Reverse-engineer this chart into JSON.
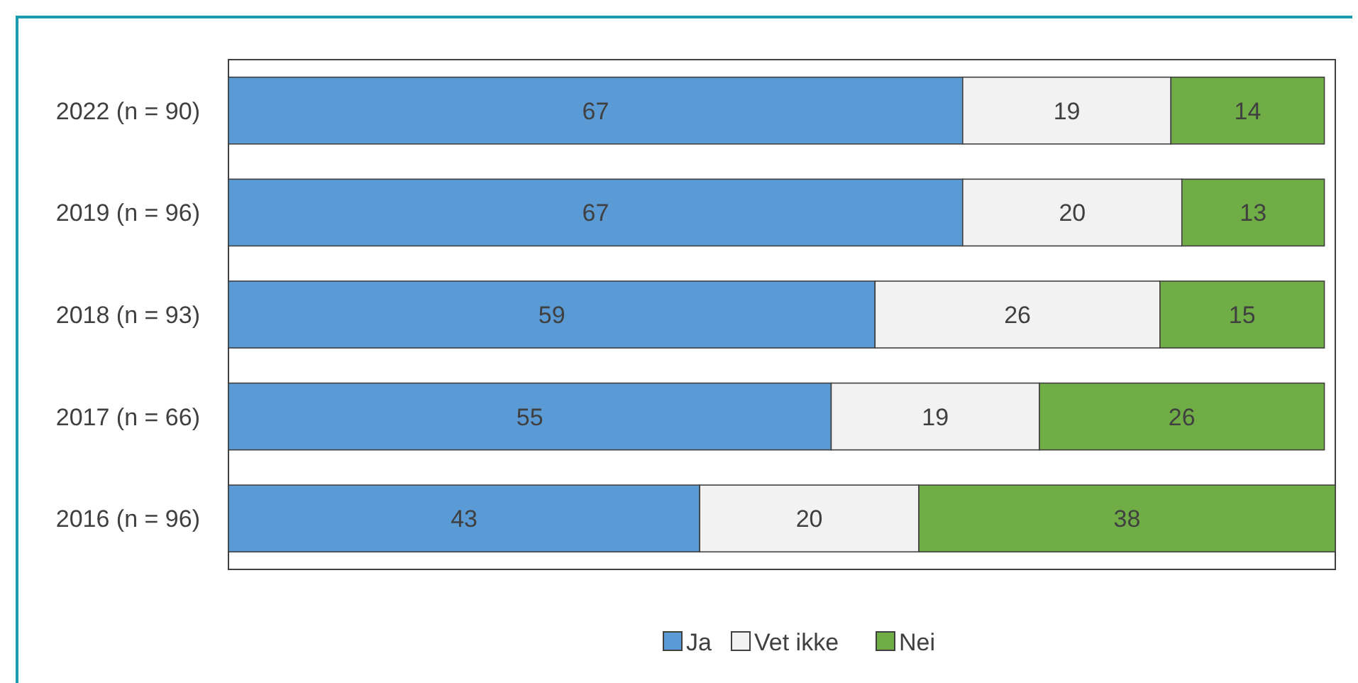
{
  "chart_data": {
    "type": "bar",
    "orientation": "horizontal",
    "stacked": true,
    "data_labels": true,
    "legend": "bottom",
    "xlim": [
      0,
      101
    ],
    "tick_labels": "y",
    "categories": [
      "2022 (n = 90)",
      "2019 (n = 96)",
      "2018 (n = 93)",
      "2017 (n = 66)",
      "2016 (n = 96)"
    ],
    "series": [
      {
        "name": "Ja",
        "color": "#5b9bd5",
        "values": [
          67,
          67,
          59,
          55,
          43
        ]
      },
      {
        "name": "Vet ikke",
        "color": "#f2f2f2",
        "values": [
          19,
          20,
          26,
          19,
          20
        ]
      },
      {
        "name": "Nei",
        "color": "#70ad47",
        "values": [
          14,
          13,
          15,
          26,
          38
        ]
      }
    ]
  }
}
